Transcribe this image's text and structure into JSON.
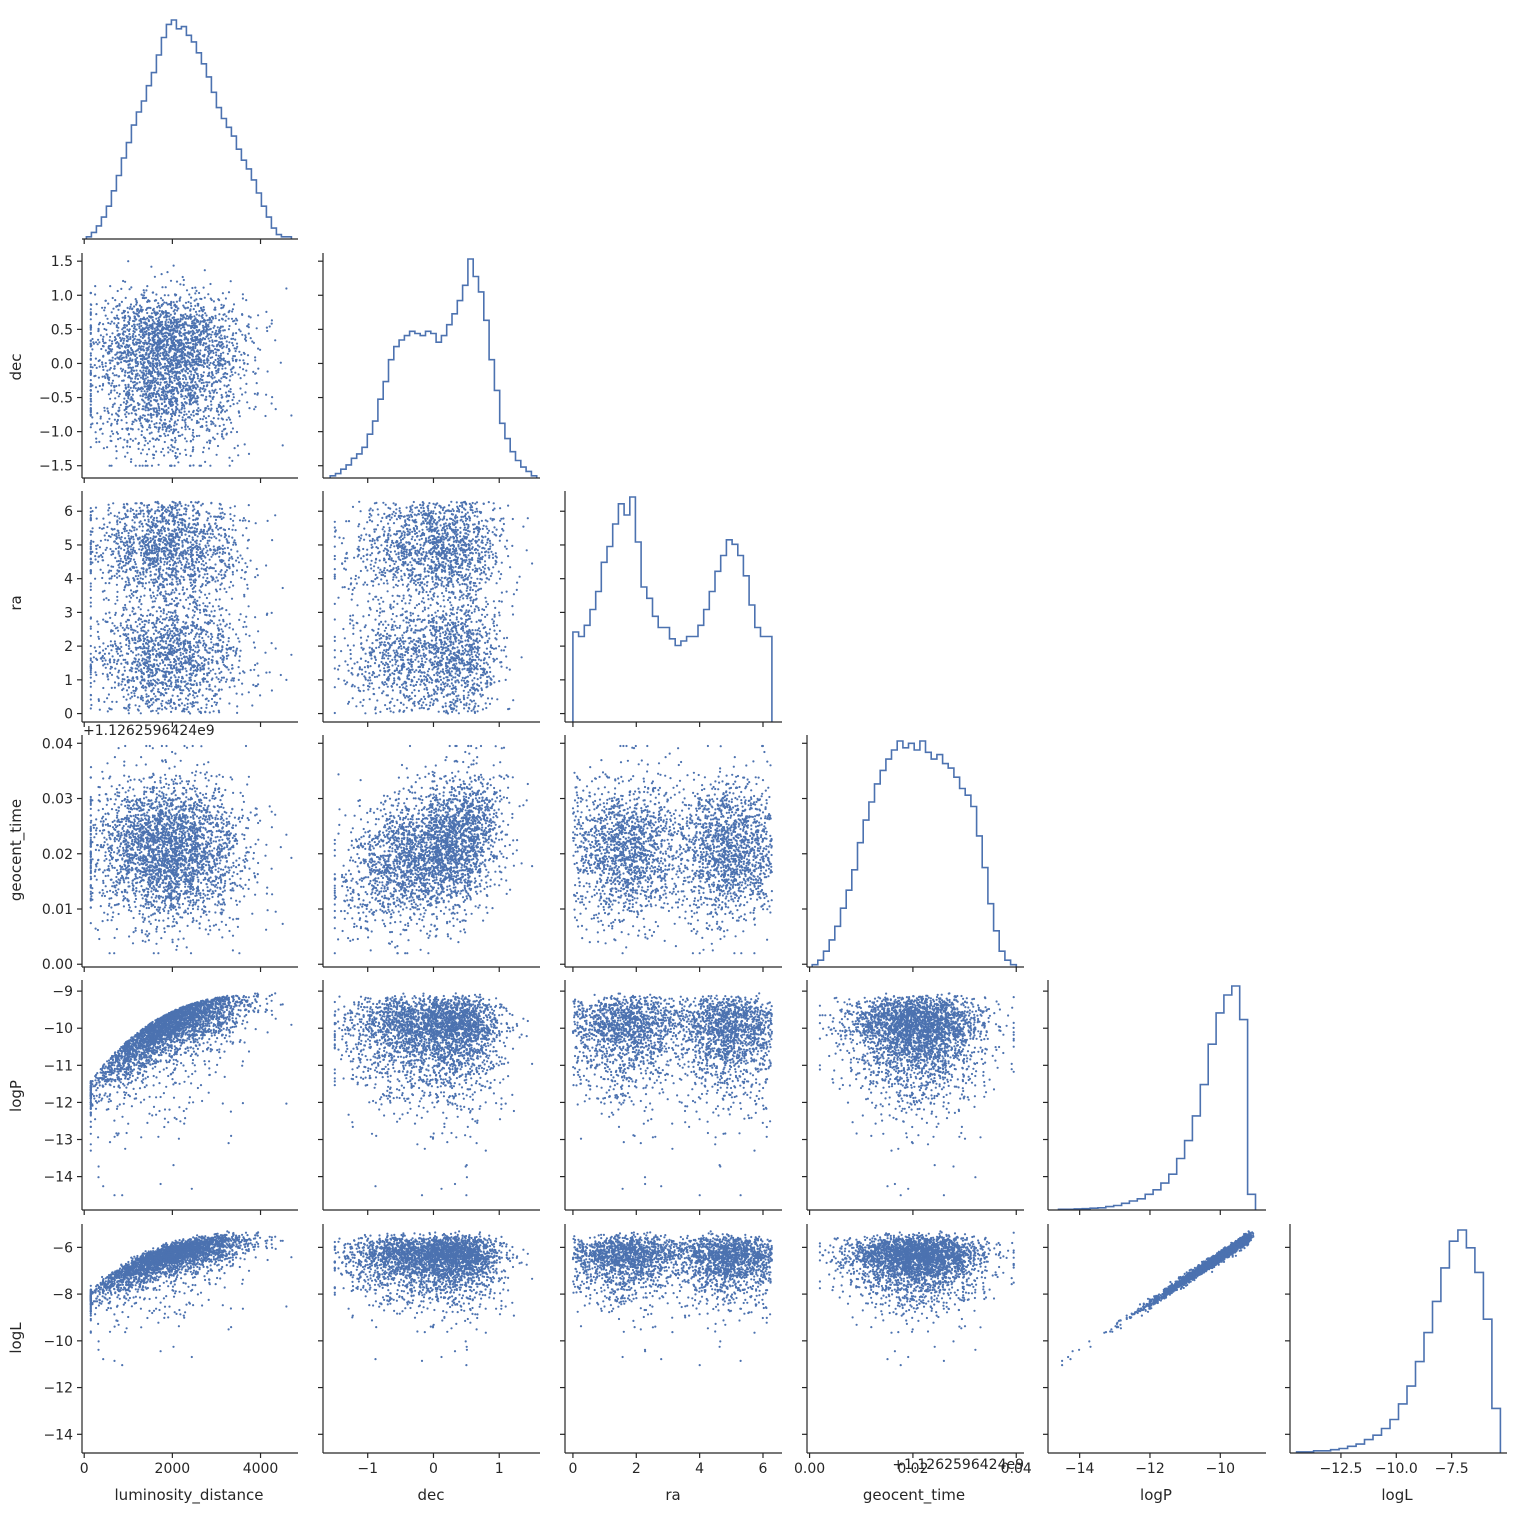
{
  "figure": {
    "type": "pairplot-corner",
    "color": "#4c72b0",
    "axis_color": "#262626"
  },
  "chart_data": {
    "type": "scatter",
    "variables": [
      {
        "name": "luminosity_distance",
        "label": "luminosity_distance",
        "range": [
          -50,
          4850
        ],
        "ticks": [
          0,
          2000,
          4000
        ],
        "tick_labels": [
          "0",
          "2000",
          "4000"
        ],
        "offset": ""
      },
      {
        "name": "dec",
        "label": "dec",
        "range": [
          -1.68,
          1.62
        ],
        "ticks": [
          -1.5,
          -1.0,
          -0.5,
          0.0,
          0.5,
          1.0,
          1.5
        ],
        "tick_labels": [
          "−1.5",
          "−1.0",
          "−0.5",
          "0.0",
          "0.5",
          "1.0",
          "1.5"
        ],
        "x_ticks": [
          -1,
          0,
          1
        ],
        "x_tick_labels": [
          "−1",
          "0",
          "1"
        ],
        "offset": ""
      },
      {
        "name": "ra",
        "label": "ra",
        "range": [
          -0.25,
          6.6
        ],
        "ticks": [
          0,
          1,
          2,
          3,
          4,
          5,
          6
        ],
        "tick_labels": [
          "0",
          "1",
          "2",
          "3",
          "4",
          "5",
          "6"
        ],
        "x_ticks": [
          0,
          2,
          4,
          6
        ],
        "x_tick_labels": [
          "0",
          "2",
          "4",
          "6"
        ],
        "offset": ""
      },
      {
        "name": "geocent_time",
        "label": "geocent_time",
        "range": [
          -0.0005,
          0.0415
        ],
        "ticks": [
          0.0,
          0.01,
          0.02,
          0.03,
          0.04
        ],
        "tick_labels": [
          "0.00",
          "0.01",
          "0.02",
          "0.03",
          "0.04"
        ],
        "x_ticks": [
          0.0,
          0.02,
          0.04
        ],
        "x_tick_labels": [
          "0.00",
          "0.02",
          "0.04"
        ],
        "offset": "+1.126259642​4e9"
      },
      {
        "name": "logP",
        "label": "logP",
        "range": [
          -14.9,
          -8.7
        ],
        "ticks": [
          -14,
          -13,
          -12,
          -11,
          -10,
          -9
        ],
        "tick_labels": [
          "−14",
          "−13",
          "−12",
          "−11",
          "−10",
          "−9"
        ],
        "x_ticks": [
          -14,
          -12,
          -10
        ],
        "x_tick_labels": [
          "−14",
          "−12",
          "−10"
        ],
        "offset": ""
      },
      {
        "name": "logL",
        "label": "logL",
        "range": [
          -14.8,
          -5.0
        ],
        "ticks": [
          -14,
          -12,
          -10,
          -8,
          -6
        ],
        "tick_labels": [
          "−14",
          "−12",
          "−10",
          "−8",
          "−6"
        ],
        "x_ticks": [
          -12.5,
          -10.0,
          -7.5
        ],
        "x_tick_labels": [
          "−12.5",
          "−10.0",
          "−7.5"
        ],
        "offset": ""
      }
    ],
    "histograms": {
      "luminosity_distance": {
        "range": [
          50,
          4700
        ],
        "counts": [
          1,
          3,
          6,
          10,
          15,
          22,
          29,
          37,
          44,
          52,
          58,
          63,
          70,
          76,
          84,
          92,
          98,
          100,
          96,
          97,
          93,
          90,
          85,
          80,
          74,
          67,
          60,
          55,
          51,
          47,
          41,
          36,
          32,
          27,
          21,
          15,
          10,
          5,
          2,
          1,
          1
        ]
      },
      "dec": {
        "range": [
          -1.57,
          1.57
        ],
        "counts": [
          1,
          2,
          4,
          6,
          9,
          11,
          14,
          20,
          26,
          36,
          44,
          54,
          60,
          63,
          65,
          67,
          66,
          65,
          67,
          66,
          62,
          65,
          70,
          75,
          81,
          88,
          100,
          92,
          85,
          72,
          54,
          40,
          25,
          18,
          12,
          8,
          5,
          3,
          1
        ]
      },
      "ra": {
        "range": [
          0.0,
          6.28
        ],
        "counts": [
          40,
          38,
          43,
          50,
          58,
          71,
          78,
          88,
          97,
          92,
          100,
          80,
          60,
          55,
          47,
          42,
          42,
          37,
          34,
          36,
          38,
          38,
          43,
          50,
          58,
          67,
          74,
          81,
          79,
          74,
          65,
          52,
          42,
          38,
          38
        ]
      },
      "geocent_time": {
        "range": [
          0.0005,
          0.04
        ],
        "counts": [
          1,
          3,
          7,
          12,
          18,
          26,
          34,
          43,
          55,
          65,
          73,
          81,
          87,
          92,
          96,
          100,
          97,
          99,
          96,
          100,
          95,
          92,
          94,
          90,
          88,
          84,
          79,
          76,
          71,
          58,
          44,
          28,
          16,
          7,
          3,
          1
        ]
      },
      "logP": {
        "range": [
          -14.6,
          -9.0
        ],
        "counts": [
          0.3,
          0.3,
          0.5,
          0.6,
          0.8,
          1,
          1.5,
          2,
          3,
          4,
          5,
          7,
          9,
          12,
          16,
          23,
          31,
          42,
          56,
          74,
          88,
          96,
          100,
          85,
          7
        ]
      },
      "logL": {
        "range": [
          -14.5,
          -5.3
        ],
        "counts": [
          0.5,
          0.5,
          1,
          1,
          1.5,
          2,
          3,
          4,
          6,
          8,
          11,
          15,
          22,
          30,
          41,
          54,
          68,
          83,
          95,
          100,
          92,
          81,
          60,
          20
        ]
      }
    },
    "scatter_points_per_panel": 3000
  },
  "labels": {
    "var0": "luminosity_distance",
    "var1": "dec",
    "var2": "ra",
    "var3": "geocent_time",
    "var4": "logP",
    "var5": "logL"
  },
  "offsets": {
    "geocent_y": "+1.126259642​4e9",
    "geocent_x": "+1.126259642​4e9"
  }
}
